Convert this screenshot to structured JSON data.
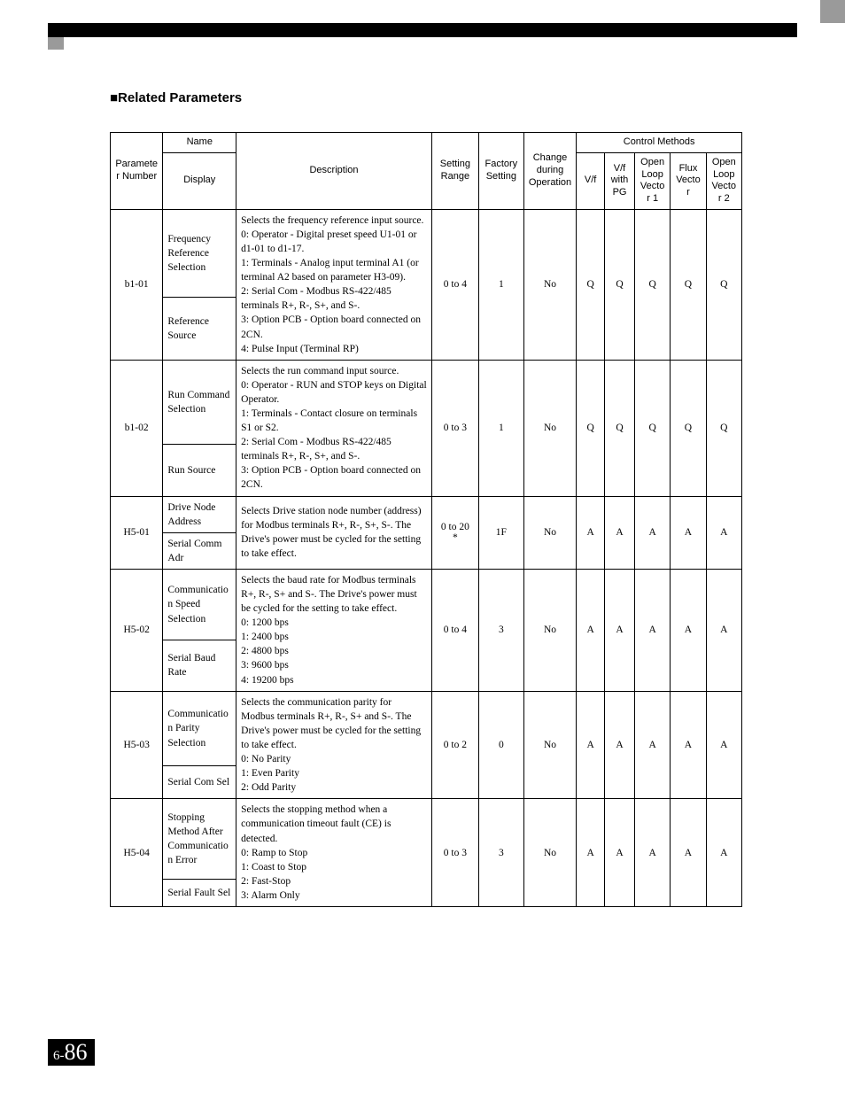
{
  "section_title": "■Related Parameters",
  "page_number_prefix": "6-",
  "page_number": "86",
  "headers": {
    "param": "Parameter Number",
    "name": "Name",
    "display": "Display",
    "description": "Description",
    "setting_range": "Setting Range",
    "factory_setting": "Factory Setting",
    "change": "Change during Operation",
    "control_methods": "Control Methods",
    "m_vf": "V/f",
    "m_vf_pg": "V/f with PG",
    "m_olv1": "Open Loop Vector 1",
    "m_flux": "Flux Vector",
    "m_olv2": "Open Loop Vector 2"
  },
  "rows": [
    {
      "param": "b1-01",
      "name": "Frequency Reference Selection",
      "display": "Reference Source",
      "desc": "Selects the frequency reference input source.\n0: Operator - Digital preset speed U1-01 or d1-01 to d1-17.\n1: Terminals - Analog input terminal A1 (or terminal A2 based on parameter H3-09).\n2: Serial Com - Modbus RS-422/485 terminals R+, R-, S+, and S-.\n3: Option PCB - Option board connected on 2CN.\n4: Pulse Input (Terminal RP)",
      "range": "0 to 4",
      "factory": "1",
      "change": "No",
      "m": [
        "Q",
        "Q",
        "Q",
        "Q",
        "Q"
      ]
    },
    {
      "param": "b1-02",
      "name": "Run Command Selection",
      "display": "Run Source",
      "desc": "Selects the run command input source.\n0: Operator - RUN and STOP keys on Digital Operator.\n1: Terminals - Contact closure on terminals S1 or S2.\n2: Serial Com - Modbus RS-422/485 terminals R+, R-, S+, and S-.\n3: Option PCB - Option board connected on 2CN.",
      "range": "0 to 3",
      "factory": "1",
      "change": "No",
      "m": [
        "Q",
        "Q",
        "Q",
        "Q",
        "Q"
      ]
    },
    {
      "param": "H5-01",
      "name": "Drive Node Address",
      "display": "Serial Comm Adr",
      "desc": "Selects Drive station node number (address) for Modbus terminals R+, R-, S+, S-. The Drive's power must be cycled for the setting to take effect.",
      "range": "0 to 20 *",
      "factory": "1F",
      "change": "No",
      "m": [
        "A",
        "A",
        "A",
        "A",
        "A"
      ]
    },
    {
      "param": "H5-02",
      "name": "Communication Speed Selection",
      "display": "Serial Baud Rate",
      "desc": "Selects the baud rate for Modbus terminals R+, R-, S+ and S-. The Drive's power must be cycled for the setting to take effect.\n0: 1200 bps\n1: 2400 bps\n2: 4800 bps\n3: 9600 bps\n4: 19200 bps",
      "range": "0 to 4",
      "factory": "3",
      "change": "No",
      "m": [
        "A",
        "A",
        "A",
        "A",
        "A"
      ]
    },
    {
      "param": "H5-03",
      "name": "Communication Parity Selection",
      "display": "Serial Com Sel",
      "desc": "Selects the communication parity for Modbus terminals R+, R-, S+ and S-. The Drive's power must be cycled for the setting to take effect.\n0: No Parity\n1: Even Parity\n2: Odd Parity",
      "range": "0 to 2",
      "factory": "0",
      "change": "No",
      "m": [
        "A",
        "A",
        "A",
        "A",
        "A"
      ]
    },
    {
      "param": "H5-04",
      "name": "Stopping Method After Communication Error",
      "display": "Serial Fault Sel",
      "desc": "Selects the stopping method when a communication timeout fault (CE) is detected.\n0: Ramp to Stop\n1: Coast to Stop\n2: Fast-Stop\n3: Alarm Only",
      "range": "0 to 3",
      "factory": "3",
      "change": "No",
      "m": [
        "A",
        "A",
        "A",
        "A",
        "A"
      ]
    }
  ]
}
